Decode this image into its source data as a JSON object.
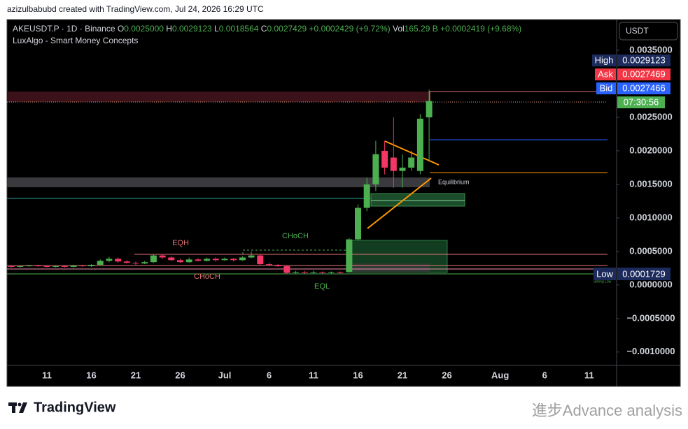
{
  "header": {
    "creator": "azizulbabubd created with TradingView.com, Jul 24, 2026 16:29 UTC",
    "symbol": "AKEUSDT.P · 1D · Binance",
    "ohlc": [
      {
        "label": "O",
        "value": "0.0025000"
      },
      {
        "label": "H",
        "value": "0.0029123"
      },
      {
        "label": "L",
        "value": "0.0018564"
      },
      {
        "label": "C",
        "value": "0.0027429"
      }
    ],
    "change": "+0.0002429 (+9.72%)",
    "volume_label": "Vol",
    "volume": "165.29 B",
    "volume_change": "+0.0002419 (+9.68%)",
    "indicator": "LuxAlgo - Smart Money Concepts",
    "currency": "USDT"
  },
  "price_tags": [
    {
      "label": "High",
      "value": "0.0029123"
    },
    {
      "label": "Ask",
      "value": "0.0027469"
    },
    {
      "label": "Bid",
      "value": "0.0027466"
    }
  ],
  "countdown": "07:30:56",
  "low_tag": {
    "label": "Low",
    "value": "0.0001729"
  },
  "annotations": [
    "EQH",
    "CHoCH",
    "CHoCH",
    "EQL",
    "Equilibrium",
    "Strong Low"
  ],
  "footer": {
    "brand": "TradingView",
    "watermark": "進步Advance analysis"
  },
  "chart_data": {
    "type": "candlestick",
    "categories": [
      null,
      null,
      null,
      null,
      "11",
      null,
      null,
      null,
      null,
      "16",
      null,
      null,
      null,
      null,
      "21",
      null,
      null,
      null,
      null,
      "26",
      null,
      null,
      null,
      null,
      "Jul",
      null,
      null,
      null,
      null,
      "6",
      null,
      null,
      null,
      null,
      "11",
      null,
      null,
      null,
      null,
      "16",
      null,
      null,
      null,
      null,
      "21",
      null,
      null,
      null,
      null,
      "26",
      null,
      null,
      null,
      null,
      null,
      "Aug",
      null,
      null,
      null,
      null,
      "6",
      null,
      null,
      null,
      null,
      "11",
      null,
      null
    ],
    "open": [
      0.00028,
      0.00027,
      0.00028,
      0.00029,
      0.00028,
      0.00027,
      0.00028,
      0.00027,
      0.00029,
      0.00028,
      0.0003,
      0.00036,
      0.00039,
      0.00035,
      0.00033,
      0.00032,
      0.00034,
      0.00044,
      0.00041,
      0.00037,
      0.00034,
      0.00038,
      0.00036,
      0.00039,
      0.00037,
      0.00039,
      0.00037,
      0.00041,
      0.00044,
      0.00031,
      0.0003,
      0.00028,
      0.00018,
      0.00019,
      0.00018,
      0.00019,
      0.00018,
      0.00019,
      0.00019,
      0.00068,
      0.00115,
      0.0015,
      0.002,
      0.0019,
      0.0017,
      0.00175,
      0.0017,
      0.0025,
      null,
      null,
      null,
      null,
      null,
      null,
      null,
      null,
      null,
      null,
      null,
      null,
      null,
      null,
      null,
      null,
      null,
      null,
      null,
      null
    ],
    "high": [
      0.00029,
      0.00029,
      0.0003,
      0.0003,
      0.00029,
      0.00029,
      0.00029,
      0.0003,
      0.0003,
      0.00031,
      0.00038,
      0.00042,
      0.00041,
      0.00037,
      0.00035,
      0.00036,
      0.00046,
      0.00046,
      0.00043,
      0.00039,
      0.00041,
      0.0004,
      0.00041,
      0.00041,
      0.00041,
      0.0004,
      0.00043,
      0.0005,
      0.00045,
      0.00033,
      0.00031,
      0.00029,
      0.00021,
      0.00021,
      0.00021,
      0.0002,
      0.0002,
      0.0002,
      0.0007,
      0.0012,
      0.0016,
      0.00215,
      0.00215,
      0.0025,
      0.00195,
      0.002,
      0.00255,
      0.0029123,
      null,
      null,
      null,
      null,
      null,
      null,
      null,
      null,
      null,
      null,
      null,
      null,
      null,
      null,
      null,
      null,
      null,
      null,
      null,
      null
    ],
    "low": [
      0.00026,
      0.00026,
      0.00027,
      0.00027,
      0.00026,
      0.00026,
      0.00026,
      0.00026,
      0.00027,
      0.00027,
      0.00029,
      0.00034,
      0.00033,
      0.00032,
      0.0003,
      0.00031,
      0.00033,
      0.00039,
      0.00036,
      0.00033,
      0.00033,
      0.00035,
      0.00035,
      0.00035,
      0.00036,
      0.00035,
      0.00036,
      0.0004,
      0.0003,
      0.00028,
      0.00027,
      0.00017,
      0.00017,
      0.00017,
      0.00017,
      0.00017,
      0.00017,
      0.0001729,
      0.00018,
      0.00066,
      0.0011,
      0.0014,
      0.00165,
      0.00145,
      0.00145,
      0.0017,
      0.00165,
      0.0018564,
      null,
      null,
      null,
      null,
      null,
      null,
      null,
      null,
      null,
      null,
      null,
      null,
      null,
      null,
      null,
      null,
      null,
      null,
      null,
      null
    ],
    "close": [
      0.00027,
      0.00028,
      0.00029,
      0.00028,
      0.00027,
      0.00028,
      0.00027,
      0.00029,
      0.00028,
      0.0003,
      0.00036,
      0.00039,
      0.00035,
      0.00033,
      0.00032,
      0.00034,
      0.00044,
      0.00041,
      0.00037,
      0.00034,
      0.00038,
      0.00036,
      0.00039,
      0.00037,
      0.00039,
      0.00037,
      0.00041,
      0.00044,
      0.00031,
      0.0003,
      0.00028,
      0.00018,
      0.00019,
      0.00018,
      0.00019,
      0.00018,
      0.00019,
      0.00018,
      0.00068,
      0.00115,
      0.0015,
      0.00195,
      0.00175,
      0.0017,
      0.00175,
      0.0019,
      0.00248,
      0.0027429,
      null,
      null,
      null,
      null,
      null,
      null,
      null,
      null,
      null,
      null,
      null,
      null,
      null,
      null,
      null,
      null,
      null,
      null,
      null,
      null
    ],
    "up_color": "#4caf50",
    "down_color": "#f23665",
    "ylim": [
      -0.0012,
      0.003958
    ],
    "yticks": [
      {
        "value": -0.001,
        "label": "−0.0010000"
      },
      {
        "value": -0.0005,
        "label": "−0.0005000"
      },
      {
        "value": 0,
        "label": "0.0000000"
      },
      {
        "value": 0.0005,
        "label": "0.0005000"
      },
      {
        "value": 0.001,
        "label": "0.0010000"
      },
      {
        "value": 0.0015,
        "label": "0.0015000"
      },
      {
        "value": 0.002,
        "label": "0.0020000"
      },
      {
        "value": 0.0025,
        "label": "0.0025000"
      },
      {
        "value": 0.0035,
        "label": "0.0035000"
      }
    ]
  }
}
